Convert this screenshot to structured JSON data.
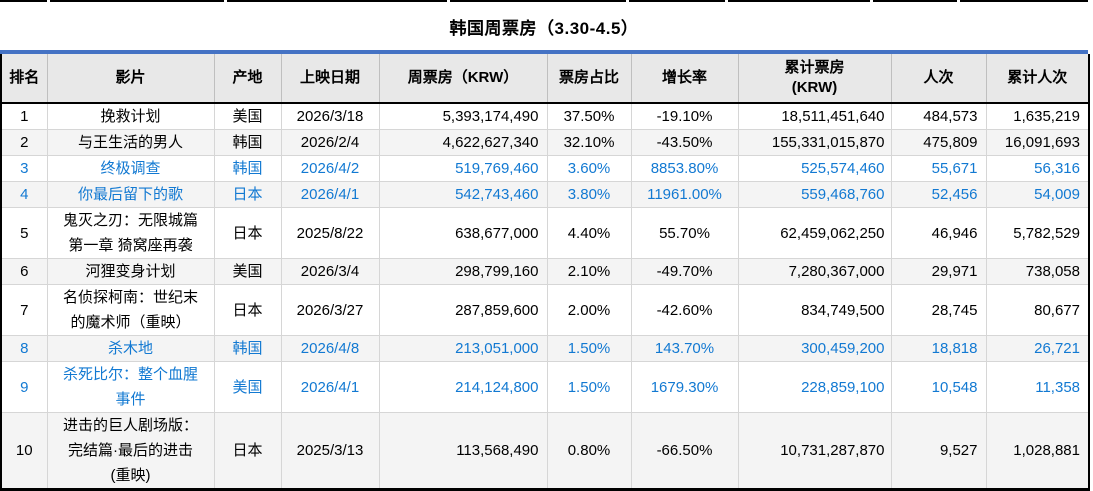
{
  "title": "韩国周票房（3.30-4.5）",
  "columns": [
    {
      "key": "rank",
      "label": "排名"
    },
    {
      "key": "film",
      "label": "影片"
    },
    {
      "key": "origin",
      "label": "产地"
    },
    {
      "key": "date",
      "label": "上映日期"
    },
    {
      "key": "weekly",
      "label": "周票房（KRW）"
    },
    {
      "key": "share",
      "label": "票房占比"
    },
    {
      "key": "growth",
      "label": "增长率"
    },
    {
      "key": "cume",
      "label": "累计票房\n(KRW)"
    },
    {
      "key": "admissions",
      "label": "人次"
    },
    {
      "key": "cume_admissions",
      "label": "累计人次"
    }
  ],
  "rows": [
    {
      "rank": "1",
      "film": "挽救计划",
      "origin": "美国",
      "date": "2026/3/18",
      "weekly": "5,393,174,490",
      "share": "37.50%",
      "growth": "-19.10%",
      "cume": "18,511,451,640",
      "admissions": "484,573",
      "cume_admissions": "1,635,219",
      "highlight": false
    },
    {
      "rank": "2",
      "film": "与王生活的男人",
      "origin": "韩国",
      "date": "2026/2/4",
      "weekly": "4,622,627,340",
      "share": "32.10%",
      "growth": "-43.50%",
      "cume": "155,331,015,870",
      "admissions": "475,809",
      "cume_admissions": "16,091,693",
      "highlight": false
    },
    {
      "rank": "3",
      "film": "终极调查",
      "origin": "韩国",
      "date": "2026/4/2",
      "weekly": "519,769,460",
      "share": "3.60%",
      "growth": "8853.80%",
      "cume": "525,574,460",
      "admissions": "55,671",
      "cume_admissions": "56,316",
      "highlight": true
    },
    {
      "rank": "4",
      "film": "你最后留下的歌",
      "origin": "日本",
      "date": "2026/4/1",
      "weekly": "542,743,460",
      "share": "3.80%",
      "growth": "11961.00%",
      "cume": "559,468,760",
      "admissions": "52,456",
      "cume_admissions": "54,009",
      "highlight": true
    },
    {
      "rank": "5",
      "film": "鬼灭之刃：无限城篇\n第一章 猗窝座再袭",
      "origin": "日本",
      "date": "2025/8/22",
      "weekly": "638,677,000",
      "share": "4.40%",
      "growth": "55.70%",
      "cume": "62,459,062,250",
      "admissions": "46,946",
      "cume_admissions": "5,782,529",
      "highlight": false
    },
    {
      "rank": "6",
      "film": "河狸变身计划",
      "origin": "美国",
      "date": "2026/3/4",
      "weekly": "298,799,160",
      "share": "2.10%",
      "growth": "-49.70%",
      "cume": "7,280,367,000",
      "admissions": "29,971",
      "cume_admissions": "738,058",
      "highlight": false
    },
    {
      "rank": "7",
      "film": "名侦探柯南：世纪末\n的魔术师（重映）",
      "origin": "日本",
      "date": "2026/3/27",
      "weekly": "287,859,600",
      "share": "2.00%",
      "growth": "-42.60%",
      "cume": "834,749,500",
      "admissions": "28,745",
      "cume_admissions": "80,677",
      "highlight": false
    },
    {
      "rank": "8",
      "film": "杀木地",
      "origin": "韩国",
      "date": "2026/4/8",
      "weekly": "213,051,000",
      "share": "1.50%",
      "growth": "143.70%",
      "cume": "300,459,200",
      "admissions": "18,818",
      "cume_admissions": "26,721",
      "highlight": true
    },
    {
      "rank": "9",
      "film": "杀死比尔：整个血腥\n事件",
      "origin": "美国",
      "date": "2026/4/1",
      "weekly": "214,124,800",
      "share": "1.50%",
      "growth": "1679.30%",
      "cume": "228,859,100",
      "admissions": "10,548",
      "cume_admissions": "11,358",
      "highlight": true
    },
    {
      "rank": "10",
      "film": "进击的巨人剧场版：\n完结篇·最后的进击\n(重映)",
      "origin": "日本",
      "date": "2025/3/13",
      "weekly": "113,568,490",
      "share": "0.80%",
      "growth": "-66.50%",
      "cume": "10,731,287,870",
      "admissions": "9,527",
      "cume_admissions": "1,028,881",
      "highlight": false
    }
  ],
  "colors": {
    "accent_bar": "#4472C4",
    "highlight_text": "#1279D2",
    "header_bg": "#E8E8E8",
    "band_bg": "#F4F4F4",
    "grid_line": "#D6D6D6",
    "outer_border": "#000000"
  }
}
